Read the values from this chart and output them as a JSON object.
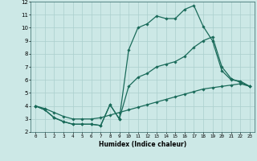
{
  "title": "",
  "xlabel": "Humidex (Indice chaleur)",
  "xlim": [
    -0.5,
    23.5
  ],
  "ylim": [
    2,
    12
  ],
  "bg_color": "#cce8e6",
  "grid_color": "#aacfcd",
  "line_color": "#1a6b5a",
  "line1_x": [
    0,
    1,
    2,
    3,
    4,
    5,
    6,
    7,
    8,
    9,
    10,
    11,
    12,
    13,
    14,
    15,
    16,
    17,
    18,
    19,
    20,
    21,
    22,
    23
  ],
  "line1_y": [
    4.0,
    3.7,
    3.1,
    2.8,
    2.6,
    2.6,
    2.6,
    2.5,
    4.1,
    3.0,
    8.3,
    10.0,
    10.3,
    10.9,
    10.7,
    10.7,
    11.4,
    11.7,
    10.1,
    9.0,
    6.7,
    6.0,
    5.9,
    5.5
  ],
  "line2_x": [
    0,
    1,
    2,
    3,
    4,
    5,
    6,
    7,
    8,
    9,
    10,
    11,
    12,
    13,
    14,
    15,
    16,
    17,
    18,
    19,
    20,
    21,
    22,
    23
  ],
  "line2_y": [
    4.0,
    3.7,
    3.1,
    2.8,
    2.6,
    2.6,
    2.6,
    2.5,
    4.1,
    3.0,
    5.5,
    6.2,
    6.5,
    7.0,
    7.2,
    7.4,
    7.8,
    8.5,
    9.0,
    9.3,
    7.0,
    6.1,
    5.8,
    5.5
  ],
  "line3_x": [
    0,
    1,
    2,
    3,
    4,
    5,
    6,
    7,
    8,
    9,
    10,
    11,
    12,
    13,
    14,
    15,
    16,
    17,
    18,
    19,
    20,
    21,
    22,
    23
  ],
  "line3_y": [
    4.0,
    3.8,
    3.5,
    3.2,
    3.0,
    3.0,
    3.0,
    3.1,
    3.3,
    3.5,
    3.7,
    3.9,
    4.1,
    4.3,
    4.5,
    4.7,
    4.9,
    5.1,
    5.3,
    5.4,
    5.5,
    5.6,
    5.7,
    5.5
  ]
}
